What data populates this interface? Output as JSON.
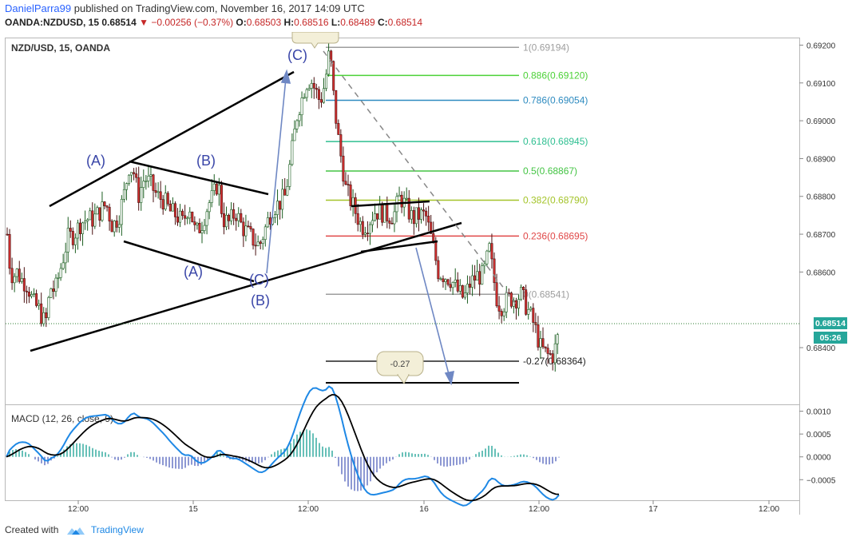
{
  "header": {
    "author": "DanielParra99",
    "published_text": "published on TradingView.com, November 16, 2017 14:09 UTC",
    "symbol": "OANDA:NZDUSD, 15",
    "last": "0.68514",
    "change": "−0.00256 (−0.37%)",
    "open_label": "O:",
    "open": "0.68503",
    "high_label": "H:",
    "high": "0.68516",
    "low_label": "L:",
    "low": "0.68489",
    "close_label": "C:",
    "close": "0.68514"
  },
  "footer": {
    "created_with": "Created with",
    "brand": "TradingView"
  },
  "colors": {
    "up": "#26a69a",
    "down": "#d32f2f",
    "candle_body": "#4a1010",
    "macd": "#1e88e5",
    "signal": "#000000"
  },
  "chart_data": [
    {
      "type": "candlestick",
      "title": "NZD/USD, 15, OANDA",
      "ylim": [
        0.6825,
        0.6922
      ],
      "y_ticks": [
        "0.69200",
        "0.69100",
        "0.69000",
        "0.68900",
        "0.68800",
        "0.68700",
        "0.68600",
        "0.68400"
      ],
      "x_ticks": [
        "12:00",
        "15",
        "12:00",
        "16",
        "12:00",
        "17",
        "12:00"
      ],
      "last_price": "0.68514",
      "countdown": "05:26",
      "path": [
        [
          0,
          0.687
        ],
        [
          4,
          0.686
        ],
        [
          8,
          0.6859
        ],
        [
          12,
          0.686
        ],
        [
          18,
          0.6858
        ],
        [
          24,
          0.6857
        ],
        [
          28,
          0.6855
        ],
        [
          32,
          0.6852
        ],
        [
          40,
          0.685
        ],
        [
          48,
          0.6846
        ],
        [
          54,
          0.6856
        ],
        [
          60,
          0.6855
        ],
        [
          68,
          0.6862
        ],
        [
          76,
          0.6869
        ],
        [
          84,
          0.687
        ],
        [
          92,
          0.6873
        ],
        [
          100,
          0.6874
        ],
        [
          108,
          0.6874
        ],
        [
          116,
          0.6876
        ],
        [
          124,
          0.6878
        ],
        [
          132,
          0.6872
        ],
        [
          140,
          0.6875
        ],
        [
          148,
          0.6882
        ],
        [
          152,
          0.6888
        ],
        [
          158,
          0.6887
        ],
        [
          164,
          0.688
        ],
        [
          172,
          0.6885
        ],
        [
          180,
          0.6883
        ],
        [
          188,
          0.688
        ],
        [
          196,
          0.6879
        ],
        [
          204,
          0.6876
        ],
        [
          212,
          0.6875
        ],
        [
          220,
          0.6873
        ],
        [
          228,
          0.6878
        ],
        [
          236,
          0.687
        ],
        [
          244,
          0.6873
        ],
        [
          252,
          0.6878
        ],
        [
          258,
          0.688
        ],
        [
          264,
          0.6884
        ],
        [
          270,
          0.6874
        ],
        [
          278,
          0.6873
        ],
        [
          286,
          0.6876
        ],
        [
          294,
          0.6872
        ],
        [
          302,
          0.687
        ],
        [
          310,
          0.6868
        ],
        [
          316,
          0.6867
        ],
        [
          324,
          0.6872
        ],
        [
          332,
          0.6877
        ],
        [
          340,
          0.6878
        ],
        [
          348,
          0.688
        ],
        [
          354,
          0.6888
        ],
        [
          360,
          0.6897
        ],
        [
          364,
          0.6903
        ],
        [
          368,
          0.6905
        ],
        [
          374,
          0.691
        ],
        [
          380,
          0.6911
        ],
        [
          386,
          0.6908
        ],
        [
          392,
          0.6905
        ],
        [
          398,
          0.691
        ],
        [
          404,
          0.6919
        ],
        [
          408,
          0.6908
        ],
        [
          412,
          0.69
        ],
        [
          416,
          0.6893
        ],
        [
          420,
          0.6888
        ],
        [
          424,
          0.6882
        ],
        [
          428,
          0.688
        ],
        [
          432,
          0.6878
        ],
        [
          436,
          0.6876
        ],
        [
          444,
          0.6872
        ],
        [
          452,
          0.6873
        ],
        [
          460,
          0.6876
        ],
        [
          468,
          0.6876
        ],
        [
          476,
          0.6875
        ],
        [
          484,
          0.6875
        ],
        [
          492,
          0.688
        ],
        [
          500,
          0.6877
        ],
        [
          508,
          0.6874
        ],
        [
          516,
          0.6875
        ],
        [
          524,
          0.6875
        ],
        [
          532,
          0.6868
        ],
        [
          540,
          0.686
        ],
        [
          548,
          0.6859
        ],
        [
          556,
          0.6858
        ],
        [
          564,
          0.6855
        ],
        [
          572,
          0.6853
        ],
        [
          580,
          0.6857
        ],
        [
          588,
          0.6859
        ],
        [
          596,
          0.6859
        ],
        [
          604,
          0.6866
        ],
        [
          608,
          0.686
        ],
        [
          614,
          0.6852
        ],
        [
          620,
          0.6851
        ],
        [
          628,
          0.6853
        ],
        [
          636,
          0.6853
        ],
        [
          644,
          0.6854
        ],
        [
          652,
          0.685
        ],
        [
          660,
          0.6846
        ],
        [
          668,
          0.684
        ],
        [
          676,
          0.6838
        ],
        [
          684,
          0.6838
        ],
        [
          690,
          0.6843
        ],
        [
          694,
          0.6848
        ],
        [
          700,
          0.6851
        ]
      ]
    },
    {
      "type": "macd",
      "label": "MACD (12, 26, close, 9)",
      "y_ticks": [
        "0.0010",
        "0.0005",
        "0.0000",
        "−0.0005"
      ],
      "ylim": [
        -0.00095,
        0.00115
      ]
    }
  ],
  "fib": {
    "levels": [
      {
        "ratio": "1",
        "price": "(0.69194)",
        "color": "#9e9e9e"
      },
      {
        "ratio": "0.886",
        "price": "(0.69120)",
        "color": "#4cd137"
      },
      {
        "ratio": "0.786",
        "price": "(0.69054)",
        "color": "#2e8bc0"
      },
      {
        "ratio": "0.618",
        "price": "(0.68945)",
        "color": "#2ebf91"
      },
      {
        "ratio": "0.5",
        "price": "(0.68867)",
        "color": "#44c444"
      },
      {
        "ratio": "0.382",
        "price": "(0.68790)",
        "color": "#a4c42a"
      },
      {
        "ratio": "0.236",
        "price": "(0.68695)",
        "color": "#e04848"
      },
      {
        "ratio": "0",
        "price": "(0.68541)",
        "color": "#9e9e9e"
      },
      {
        "ratio": "-0.27",
        "price": "(0.68364)",
        "color": "#222222"
      }
    ]
  },
  "annotations": {
    "a1": "(A)",
    "b1": "(B)",
    "c1": "(C)",
    "a2": "(A)",
    "b2": "(B)",
    "c2": "(C)",
    "target_label": "-0.27"
  }
}
